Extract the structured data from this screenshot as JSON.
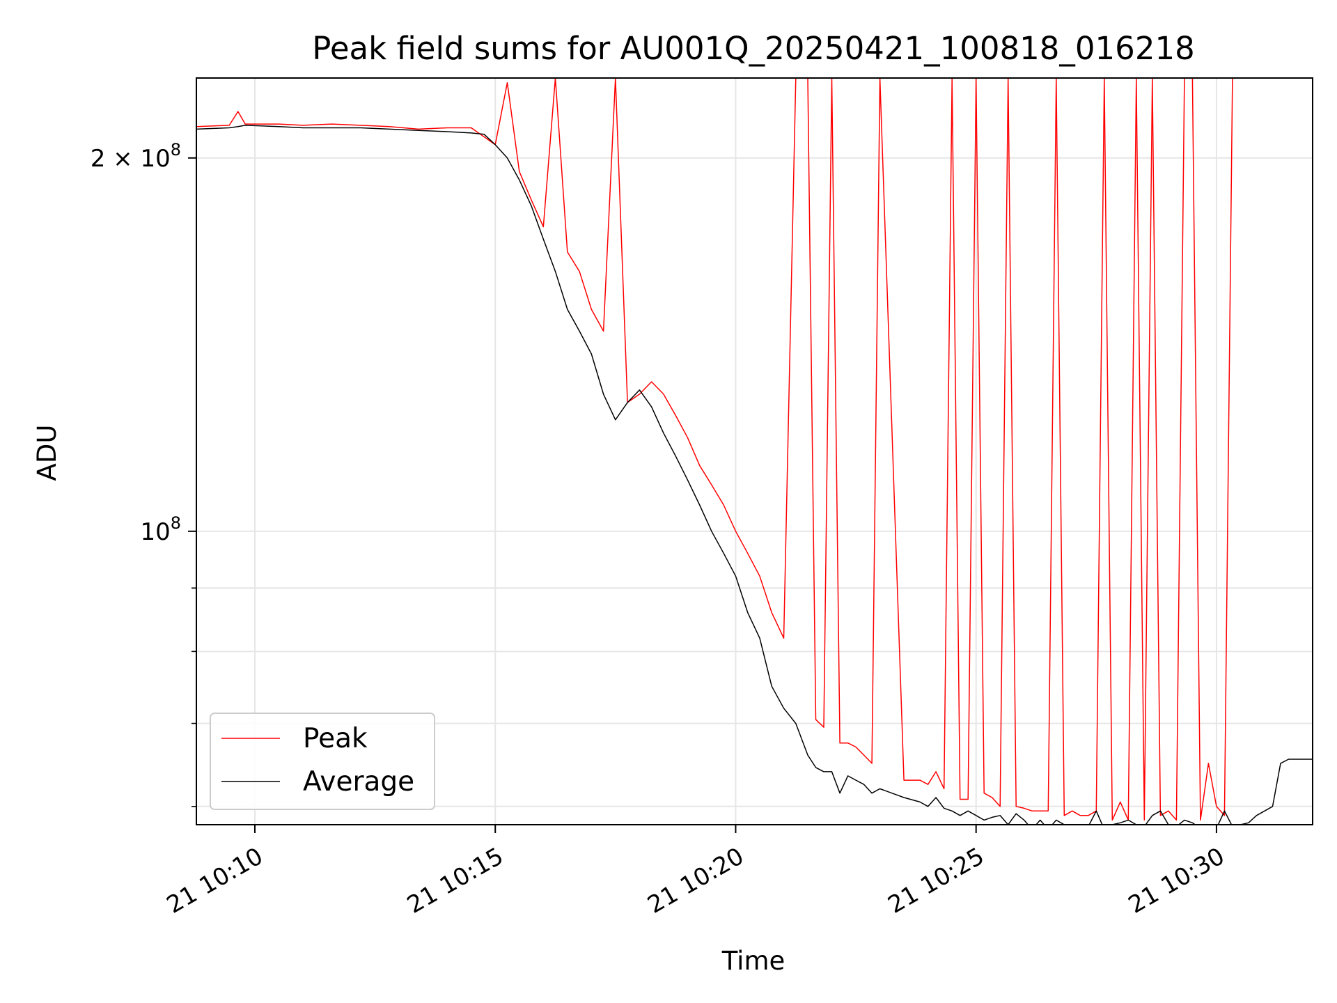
{
  "chart_data": {
    "type": "line",
    "title": "Peak field sums for AU001Q_20250421_100818_016218",
    "xlabel": "Time",
    "ylabel": "ADU",
    "y_scale": "log",
    "ylim": [
      58000000,
      232000000
    ],
    "xlim": [
      "21 10:08:47",
      "21 10:32:00"
    ],
    "grid": true,
    "legend_position": "lower-left",
    "x_ticks": [
      {
        "time": "21 10:10:00",
        "label": "21 10:10"
      },
      {
        "time": "21 10:15:00",
        "label": "21 10:15"
      },
      {
        "time": "21 10:20:00",
        "label": "21 10:20"
      },
      {
        "time": "21 10:25:00",
        "label": "21 10:25"
      },
      {
        "time": "21 10:30:00",
        "label": "21 10:30"
      }
    ],
    "y_major_ticks": [
      {
        "value": 100000000,
        "base": "10",
        "exp": "8"
      },
      {
        "value": 200000000,
        "mantissa": "2 × 10",
        "exp": "8"
      }
    ],
    "y_minor_ticks": [
      60000000,
      70000000,
      80000000,
      90000000
    ],
    "x_times": [
      "21 10:08:47",
      "21 10:09:28",
      "21 10:09:39",
      "21 10:09:48",
      "21 10:10:30",
      "21 10:11:00",
      "21 10:11:36",
      "21 10:12:12",
      "21 10:12:48",
      "21 10:13:24",
      "21 10:14:00",
      "21 10:14:30",
      "21 10:14:46",
      "21 10:15:00",
      "21 10:15:15",
      "21 10:15:30",
      "21 10:15:45",
      "21 10:16:00",
      "21 10:16:15",
      "21 10:16:30",
      "21 10:16:45",
      "21 10:17:00",
      "21 10:17:15",
      "21 10:17:30",
      "21 10:17:45",
      "21 10:18:00",
      "21 10:18:15",
      "21 10:18:30",
      "21 10:18:45",
      "21 10:19:00",
      "21 10:19:15",
      "21 10:19:30",
      "21 10:19:45",
      "21 10:20:00",
      "21 10:20:15",
      "21 10:20:30",
      "21 10:20:45",
      "21 10:21:00",
      "21 10:21:15",
      "21 10:21:30",
      "21 10:21:40",
      "21 10:21:50",
      "21 10:22:00",
      "21 10:22:10",
      "21 10:22:20",
      "21 10:22:30",
      "21 10:22:40",
      "21 10:22:50",
      "21 10:23:00",
      "21 10:23:30",
      "21 10:23:50",
      "21 10:24:00",
      "21 10:24:10",
      "21 10:24:20",
      "21 10:24:30",
      "21 10:24:40",
      "21 10:24:50",
      "21 10:25:00",
      "21 10:25:10",
      "21 10:25:20",
      "21 10:25:30",
      "21 10:25:40",
      "21 10:25:50",
      "21 10:26:00",
      "21 10:26:10",
      "21 10:26:20",
      "21 10:26:30",
      "21 10:26:40",
      "21 10:26:50",
      "21 10:27:00",
      "21 10:27:10",
      "21 10:27:20",
      "21 10:27:30",
      "21 10:27:40",
      "21 10:27:50",
      "21 10:28:00",
      "21 10:28:10",
      "21 10:28:20",
      "21 10:28:30",
      "21 10:28:40",
      "21 10:28:50",
      "21 10:29:00",
      "21 10:29:10",
      "21 10:29:20",
      "21 10:29:30",
      "21 10:29:40",
      "21 10:29:50",
      "21 10:30:00",
      "21 10:30:10",
      "21 10:30:20",
      "21 10:30:30",
      "21 10:30:40",
      "21 10:30:50",
      "21 10:31:00",
      "21 10:31:10",
      "21 10:31:20",
      "21 10:31:30",
      "21 10:32:00"
    ],
    "series": [
      {
        "name": "Peak",
        "color": "#ff0000",
        "values": [
          212000000,
          212500000,
          218000000,
          213000000,
          213000000,
          212500000,
          213000000,
          212500000,
          212000000,
          211000000,
          211500000,
          211500000,
          208000000,
          205000000,
          230000000,
          195000000,
          185000000,
          176000000,
          232000000,
          168000000,
          162000000,
          151000000,
          145000000,
          232000000,
          127000000,
          129000000,
          132000000,
          129000000,
          124000000,
          119000000,
          113000000,
          109000000,
          105000000,
          100000000,
          96000000,
          92000000,
          86000000,
          82000000,
          232000000,
          232000000,
          70500000,
          69500000,
          232000000,
          67500000,
          67500000,
          67000000,
          66000000,
          65000000,
          232000000,
          63000000,
          63000000,
          62500000,
          64000000,
          62000000,
          232000000,
          60800000,
          60800000,
          232000000,
          61500000,
          61000000,
          60000000,
          232000000,
          60000000,
          59800000,
          59500000,
          59500000,
          59500000,
          232000000,
          59000000,
          59500000,
          59000000,
          59000000,
          59500000,
          232000000,
          58500000,
          60500000,
          58500000,
          232000000,
          58500000,
          232000000,
          59000000,
          59500000,
          58500000,
          232000000,
          232000000,
          58500000,
          65000000,
          60000000,
          59000000,
          232000000,
          232000000,
          232000000,
          232000000,
          232000000,
          232000000,
          232000000,
          232000000,
          232000000
        ]
      },
      {
        "name": "Average",
        "color": "#000000",
        "values": [
          211000000,
          211500000,
          212000000,
          212500000,
          212000000,
          211500000,
          211500000,
          211500000,
          211000000,
          210500000,
          210000000,
          209500000,
          209000000,
          205000000,
          200000000,
          192000000,
          183000000,
          172000000,
          162000000,
          151000000,
          145000000,
          139000000,
          129000000,
          123000000,
          127000000,
          130000000,
          126000000,
          120000000,
          115000000,
          110000000,
          105000000,
          100000000,
          96000000,
          92000000,
          86000000,
          82000000,
          75000000,
          72000000,
          70000000,
          66000000,
          64500000,
          64000000,
          64000000,
          61500000,
          63500000,
          63000000,
          62500000,
          61500000,
          62000000,
          61000000,
          60500000,
          60000000,
          61000000,
          59800000,
          59500000,
          59000000,
          59500000,
          59000000,
          58500000,
          58800000,
          59000000,
          58000000,
          59200000,
          58500000,
          57500000,
          58500000,
          57500000,
          58500000,
          58000000,
          57800000,
          58000000,
          57800000,
          59500000,
          57500000,
          58000000,
          58200000,
          58500000,
          58000000,
          57800000,
          59000000,
          59500000,
          58000000,
          57800000,
          58500000,
          58200000,
          57600000,
          58000000,
          57600000,
          59500000,
          57800000,
          58000000,
          58200000,
          59000000,
          59500000,
          60000000,
          65000000,
          65500000,
          65500000
        ]
      }
    ]
  }
}
